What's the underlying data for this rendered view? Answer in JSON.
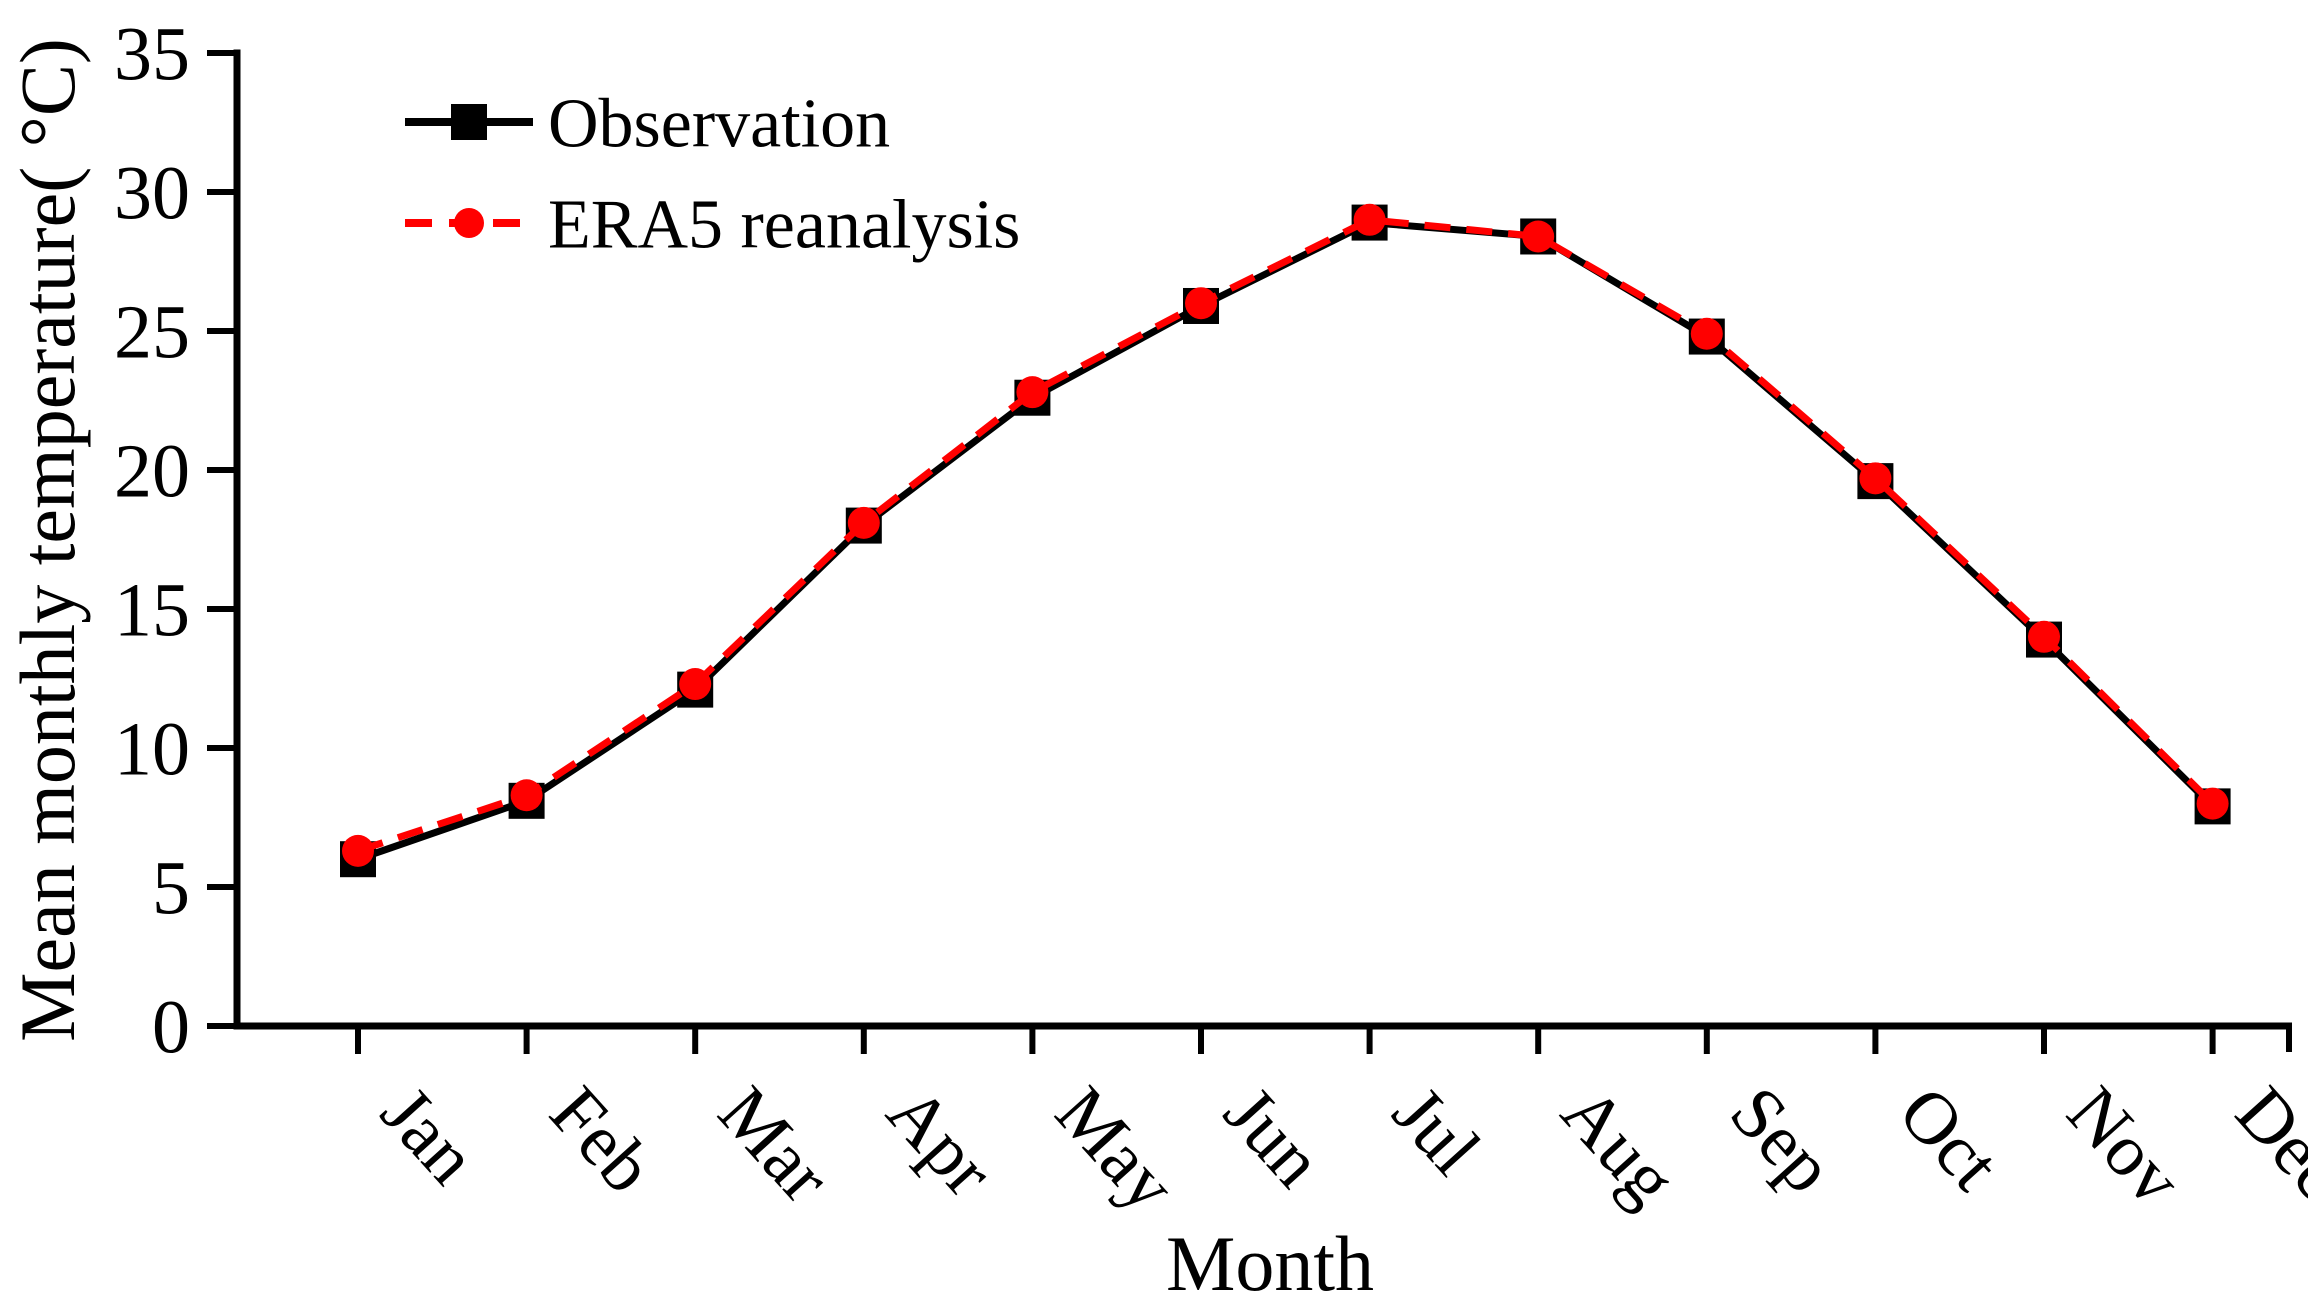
{
  "figure": {
    "background": "#ffffff",
    "axis_color": "#000000"
  },
  "chart_data": {
    "type": "line",
    "title": "",
    "xlabel": "Month",
    "ylabel": "Mean monthly temperature( °C)",
    "categories": [
      "Jan",
      "Feb",
      "Mar",
      "Apr",
      "May",
      "Jun",
      "Jul",
      "Aug",
      "Sep",
      "Oct",
      "Nov",
      "Dec"
    ],
    "ylim": [
      0,
      35
    ],
    "yticks": [
      0,
      5,
      10,
      15,
      20,
      25,
      30,
      35
    ],
    "grid": false,
    "legend_position": "top-left",
    "series": [
      {
        "name": "Observation",
        "color": "#000000",
        "line_style": "solid",
        "marker": "square",
        "values": [
          6.0,
          8.1,
          12.1,
          18.0,
          22.6,
          25.9,
          28.9,
          28.4,
          24.8,
          19.6,
          13.9,
          7.9
        ]
      },
      {
        "name": "ERA5 reanalysis",
        "color": "#ff0000",
        "line_style": "dashed",
        "marker": "circle",
        "values": [
          6.3,
          8.3,
          12.3,
          18.1,
          22.8,
          26.0,
          29.0,
          28.4,
          24.9,
          19.7,
          14.0,
          8.0
        ]
      }
    ]
  }
}
